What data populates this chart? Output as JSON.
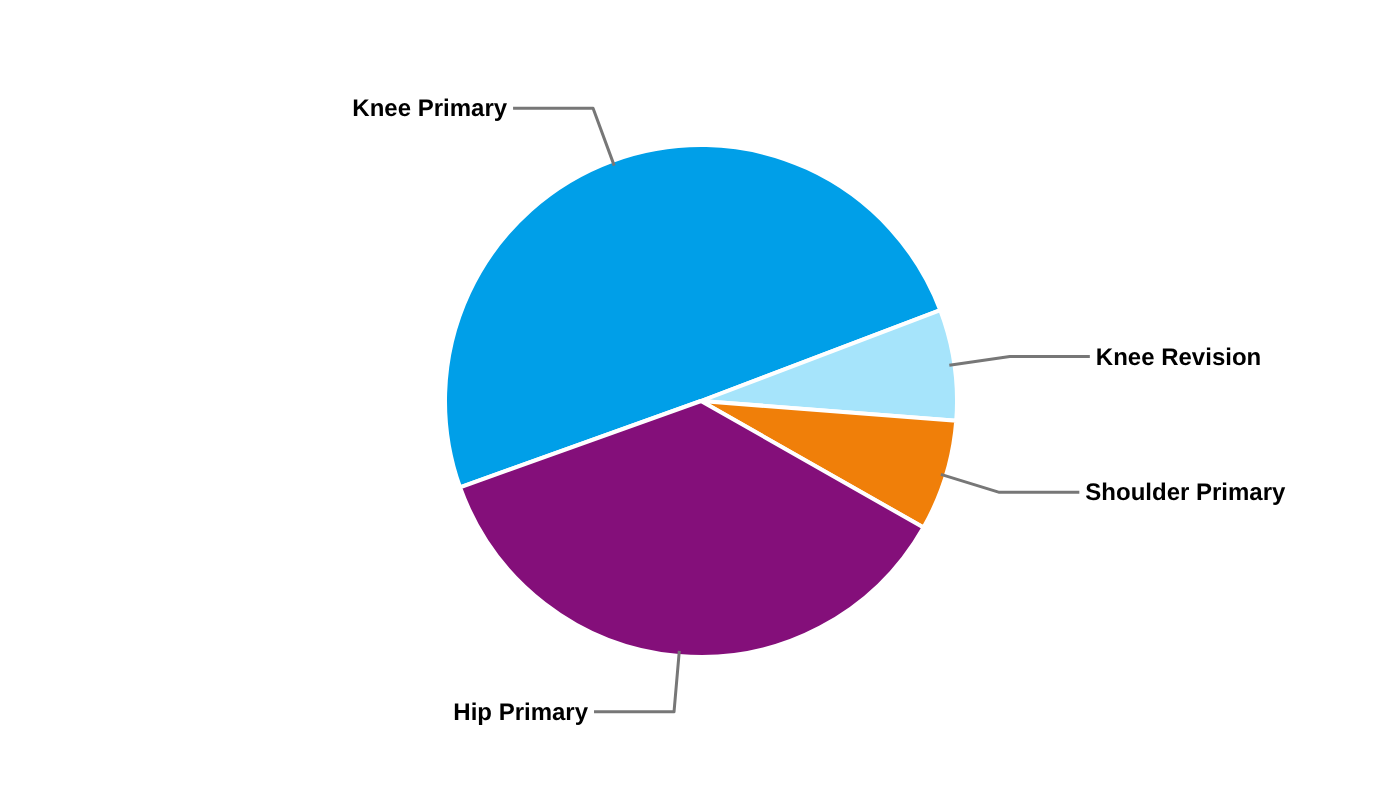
{
  "chart_data": {
    "type": "pie",
    "categories": [
      "Knee Primary",
      "Knee Revision",
      "Shoulder Primary",
      "Hip Primary"
    ],
    "values": [
      49.7,
      7.0,
      7.0,
      36.3
    ],
    "colors": [
      "#009fe8",
      "#a6e4fb",
      "#f07f09",
      "#840f7a"
    ]
  }
}
